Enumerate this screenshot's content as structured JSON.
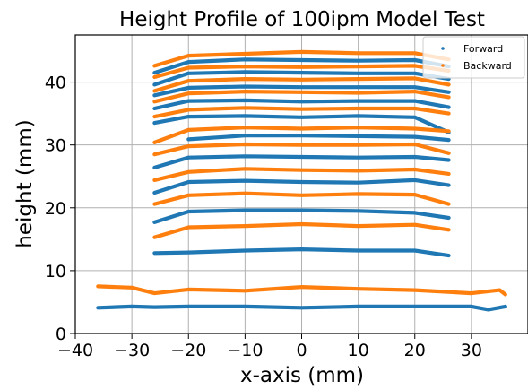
{
  "chart_data": {
    "type": "scatter",
    "title": "Height Profile of 100ipm Model Test",
    "xlabel": "x-axis (mm)",
    "ylabel": "height (mm)",
    "xlim": [
      -40,
      40
    ],
    "ylim": [
      0,
      47.5
    ],
    "xticks": [
      -40,
      -30,
      -20,
      -10,
      0,
      10,
      20,
      30
    ],
    "xtick_labels": [
      "−40",
      "−30",
      "−20",
      "−10",
      "0",
      "10",
      "20",
      "30"
    ],
    "yticks": [
      0,
      10,
      20,
      30,
      40
    ],
    "ytick_labels": [
      "0",
      "10",
      "20",
      "30",
      "40"
    ],
    "grid": true,
    "legend_position": "top-right",
    "colors": {
      "Forward": "#1f77b4",
      "Backward": "#ff7f0e"
    },
    "series": [
      {
        "name": "Forward",
        "color": "#1f77b4",
        "profiles": [
          {
            "x": [
              -36,
              -30,
              -26,
              -20,
              -10,
              0,
              10,
              20,
              30,
              33,
              36
            ],
            "y": [
              4.1,
              4.3,
              4.2,
              4.3,
              4.3,
              4.1,
              4.3,
              4.3,
              4.3,
              3.8,
              4.3
            ]
          },
          {
            "x": [
              -26,
              -20,
              -10,
              0,
              10,
              20,
              26
            ],
            "y": [
              12.8,
              12.9,
              13.2,
              13.4,
              13.2,
              13.2,
              12.4
            ]
          },
          {
            "x": [
              -26,
              -20,
              -10,
              0,
              10,
              20,
              26
            ],
            "y": [
              17.7,
              19.4,
              19.6,
              19.6,
              19.5,
              19.2,
              18.4
            ]
          },
          {
            "x": [
              -26,
              -20,
              -10,
              0,
              10,
              20,
              26
            ],
            "y": [
              22.4,
              24.1,
              24.3,
              24.1,
              24.0,
              24.4,
              23.6
            ]
          },
          {
            "x": [
              -26,
              -20,
              -10,
              0,
              10,
              20,
              26
            ],
            "y": [
              26.4,
              28.0,
              28.2,
              28.1,
              28.0,
              28.1,
              27.6
            ]
          },
          {
            "x": [
              -20,
              -10,
              0,
              10,
              20,
              26
            ],
            "y": [
              30.9,
              31.5,
              31.5,
              31.4,
              31.3,
              30.8
            ]
          },
          {
            "x": [
              -26,
              -20,
              -10,
              0,
              10,
              20,
              26
            ],
            "y": [
              33.5,
              34.5,
              34.6,
              34.4,
              34.6,
              34.4,
              32.0
            ]
          },
          {
            "x": [
              -26,
              -20,
              -10,
              0,
              10,
              20,
              26
            ],
            "y": [
              35.8,
              37.0,
              37.1,
              36.9,
              37.0,
              37.0,
              36.0
            ]
          },
          {
            "x": [
              -26,
              -20,
              -10,
              0,
              10,
              20,
              26
            ],
            "y": [
              37.9,
              39.1,
              39.3,
              39.2,
              39.2,
              39.2,
              38.4
            ]
          },
          {
            "x": [
              -26,
              -20,
              -10,
              0,
              10,
              20,
              26
            ],
            "y": [
              39.6,
              41.4,
              41.6,
              41.5,
              41.4,
              41.4,
              40.5
            ]
          },
          {
            "x": [
              -26,
              -20,
              -10,
              0,
              10,
              20,
              26
            ],
            "y": [
              41.5,
              43.2,
              43.6,
              43.5,
              43.4,
              43.5,
              42.5
            ]
          }
        ]
      },
      {
        "name": "Backward",
        "color": "#ff7f0e",
        "profiles": [
          {
            "x": [
              -36,
              -30,
              -26,
              -20,
              -10,
              0,
              10,
              20,
              30,
              35,
              36
            ],
            "y": [
              7.5,
              7.3,
              6.4,
              7.0,
              6.8,
              7.4,
              7.1,
              6.9,
              6.4,
              6.9,
              6.2
            ]
          },
          {
            "x": [
              -26,
              -20,
              -10,
              0,
              10,
              20,
              26
            ],
            "y": [
              15.3,
              16.9,
              17.1,
              17.4,
              17.1,
              17.3,
              16.5
            ]
          },
          {
            "x": [
              -26,
              -20,
              -10,
              0,
              10,
              20,
              26
            ],
            "y": [
              20.6,
              22.0,
              22.3,
              22.0,
              22.2,
              22.1,
              20.6
            ]
          },
          {
            "x": [
              -26,
              -20,
              -10,
              0,
              10,
              20,
              26
            ],
            "y": [
              24.4,
              25.7,
              26.2,
              26.0,
              25.9,
              26.1,
              25.4
            ]
          },
          {
            "x": [
              -26,
              -20,
              -10,
              0,
              10,
              20,
              26
            ],
            "y": [
              28.5,
              29.8,
              30.1,
              30.0,
              30.0,
              30.1,
              28.7
            ]
          },
          {
            "x": [
              -26,
              -20,
              -10,
              0,
              10,
              20,
              26
            ],
            "y": [
              30.4,
              32.4,
              32.8,
              32.6,
              32.8,
              32.6,
              32.2
            ]
          },
          {
            "x": [
              -26,
              -20,
              -10,
              0,
              10,
              20,
              26
            ],
            "y": [
              34.5,
              35.6,
              35.9,
              35.7,
              35.8,
              35.8,
              35.0
            ]
          },
          {
            "x": [
              -26,
              -20,
              -10,
              0,
              10,
              20,
              26
            ],
            "y": [
              36.9,
              38.2,
              38.5,
              38.4,
              38.3,
              38.5,
              37.6
            ]
          },
          {
            "x": [
              -26,
              -20,
              -10,
              0,
              10,
              20,
              26
            ],
            "y": [
              38.6,
              40.2,
              40.5,
              40.4,
              40.5,
              40.6,
              39.6
            ]
          },
          {
            "x": [
              -26,
              -20,
              -10,
              0,
              10,
              20,
              26
            ],
            "y": [
              40.8,
              42.3,
              42.5,
              42.4,
              42.5,
              42.6,
              41.8
            ]
          },
          {
            "x": [
              -26,
              -20,
              -10,
              0,
              10,
              20,
              26
            ],
            "y": [
              42.6,
              44.2,
              44.5,
              44.8,
              44.6,
              44.6,
              43.6
            ]
          }
        ]
      }
    ]
  }
}
